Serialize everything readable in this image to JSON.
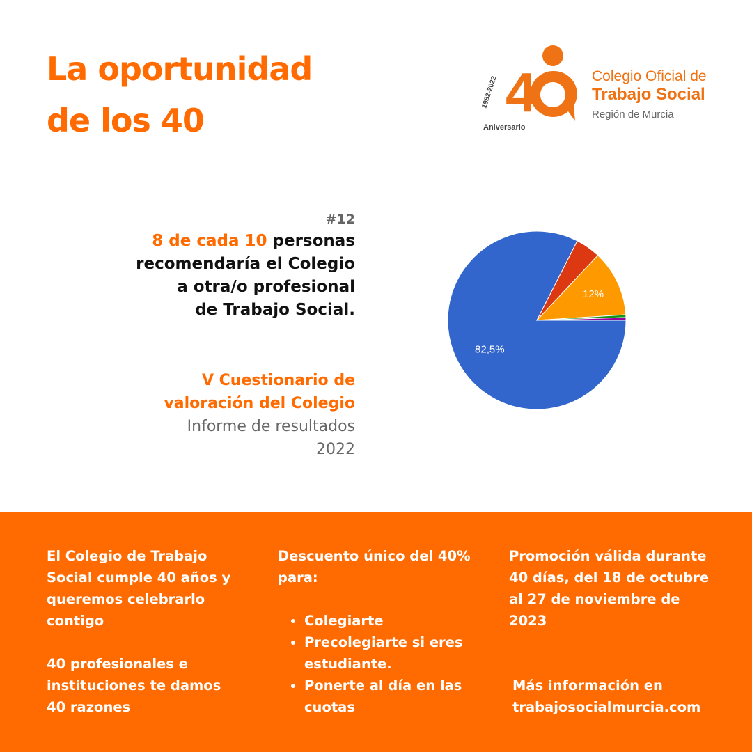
{
  "header": {
    "title_line1": "La oportunidad",
    "title_line2": "de los 40"
  },
  "logo": {
    "years": "1982-2022",
    "number": "40",
    "anniversary": "Aniversario",
    "line1": "Colegio Oficial de",
    "line2": "Trabajo Social",
    "line3": "Región de Murcia"
  },
  "quote": {
    "number": "#12",
    "highlight": "8 de cada 10",
    "line1_rest": " personas",
    "line2": "recomendaría el Colegio",
    "line3": "a otra/o profesional",
    "line4": "de Trabajo Social."
  },
  "source": {
    "title1": "V Cuestionario de",
    "title2": "valoración del Colegio",
    "sub1": "Informe de resultados",
    "sub2": "2022"
  },
  "chart_data": {
    "type": "pie",
    "start_angle_deg": 90,
    "slices": [
      {
        "name": "blue",
        "value": 82.5,
        "label": "82,5%",
        "color": "#3366cc"
      },
      {
        "name": "red",
        "value": 4.5,
        "label": "",
        "color": "#dc3912"
      },
      {
        "name": "orange",
        "value": 12,
        "label": "12%",
        "color": "#ff9900"
      },
      {
        "name": "green",
        "value": 0.5,
        "label": "",
        "color": "#109618"
      },
      {
        "name": "purple",
        "value": 0.5,
        "label": "",
        "color": "#990099"
      }
    ]
  },
  "footer": {
    "col1": {
      "p1": "El Colegio de Trabajo Social cumple 40 años y queremos celebrarlo contigo",
      "p2": "40 profesionales e instituciones te damos 40 razones"
    },
    "col2": {
      "intro": "Descuento único del 40% para:",
      "items": [
        "Colegiarte",
        "Precolegiarte si eres estudiante.",
        "Ponerte al día en las cuotas"
      ]
    },
    "col3": {
      "p1": "Promoción válida durante 40 días, del 18 de octubre al 27 de noviembre de 2023",
      "p2": "Más información en trabajosocialmurcia.com"
    }
  },
  "colors": {
    "accent": "#ff6b00",
    "logo": "#ef7314"
  }
}
